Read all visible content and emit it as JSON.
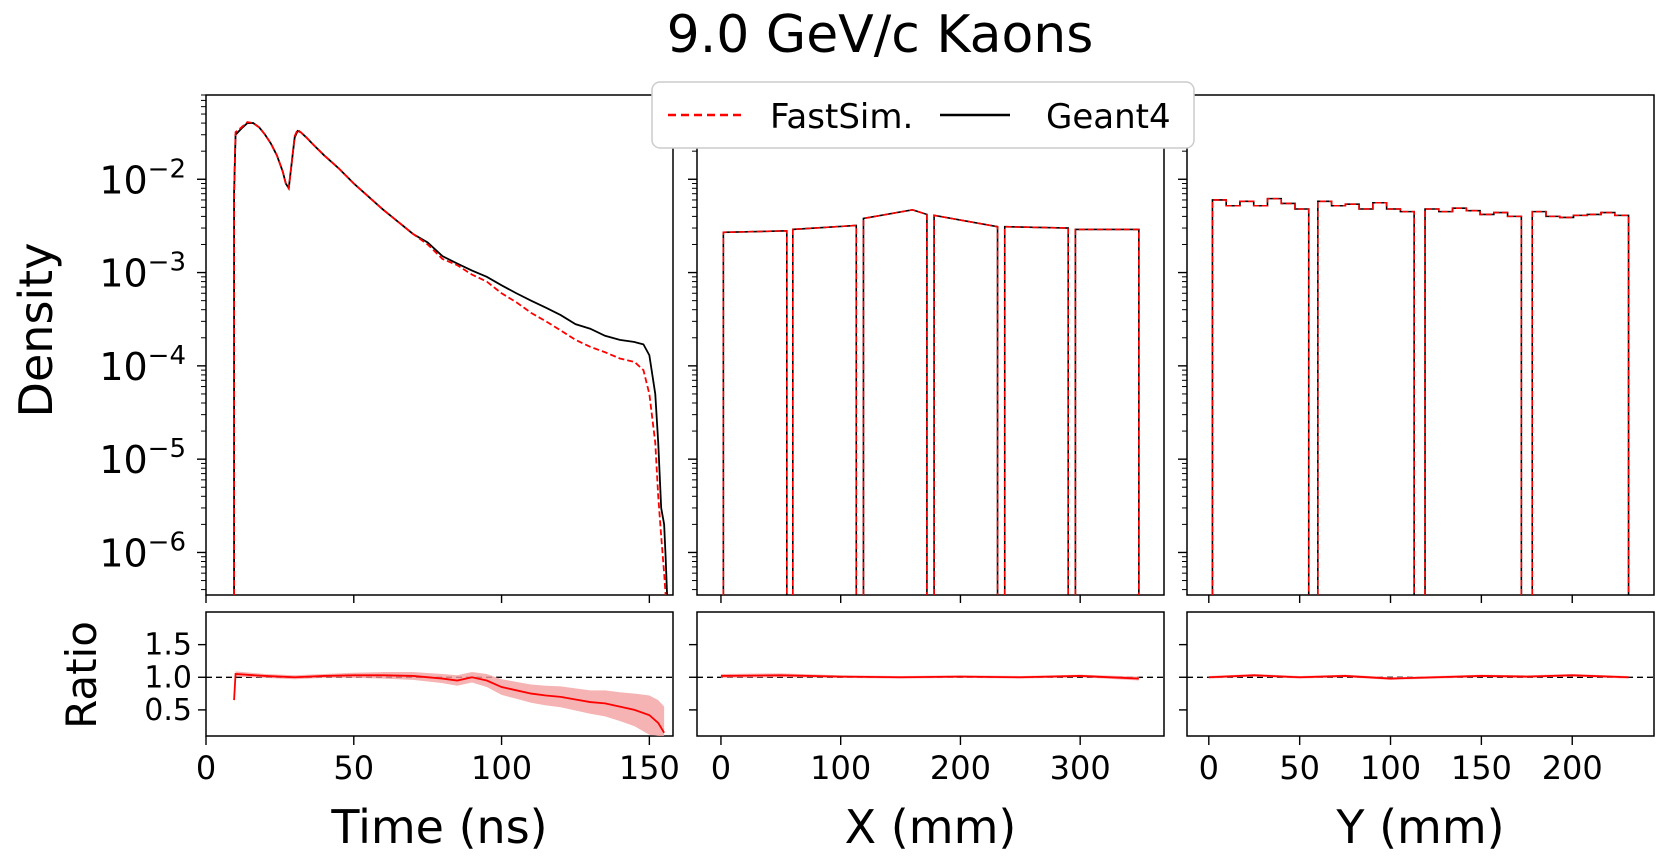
{
  "title": "9.0 GeV/c Kaons",
  "ylabel": "Density",
  "ratio_label": "Ratio",
  "legend": {
    "location": "top-center",
    "entries": [
      {
        "label": "FastSim.",
        "color": "#ff0000",
        "style": "dashed"
      },
      {
        "label": "Geant4",
        "color": "#000000",
        "style": "solid"
      }
    ]
  },
  "colors": {
    "fastsim": "#ff0000",
    "geant4": "#000000",
    "ratio_band": "#f4a0a0"
  },
  "chart_data": [
    {
      "type": "line",
      "id": "time",
      "xlabel": "Time (ns)",
      "ylabel": "Density",
      "yscale": "log",
      "xlim": [
        0,
        158
      ],
      "ylim": [
        3.5e-07,
        0.08
      ],
      "xticks": [
        0,
        50,
        100,
        150
      ],
      "xtick_labels": [
        "0",
        "50",
        "100",
        "150"
      ],
      "yticks": [
        1e-06,
        1e-05,
        0.0001,
        0.001,
        0.01
      ],
      "ytick_labels": [
        [
          "10",
          "−6"
        ],
        [
          "10",
          "−5"
        ],
        [
          "10",
          "−4"
        ],
        [
          "10",
          "−3"
        ],
        [
          "10",
          "−2"
        ]
      ],
      "series": [
        {
          "name": "Geant4",
          "x": [
            9.5,
            10,
            12,
            14,
            16,
            18,
            20,
            22,
            24,
            26,
            27,
            28,
            29,
            30,
            31,
            32,
            34,
            36,
            40,
            45,
            50,
            55,
            60,
            65,
            70,
            75,
            80,
            85,
            90,
            95,
            100,
            105,
            110,
            115,
            120,
            125,
            130,
            135,
            140,
            145,
            148,
            150,
            152,
            153,
            154,
            155,
            155.5,
            156
          ],
          "y": [
            0.007,
            0.03,
            0.035,
            0.04,
            0.04,
            0.036,
            0.03,
            0.024,
            0.018,
            0.012,
            0.009,
            0.008,
            0.015,
            0.028,
            0.033,
            0.032,
            0.028,
            0.024,
            0.018,
            0.013,
            0.009,
            0.0065,
            0.0047,
            0.0035,
            0.0026,
            0.0021,
            0.0015,
            0.00125,
            0.00105,
            0.0009,
            0.00073,
            0.0006,
            0.0005,
            0.00042,
            0.00035,
            0.00028,
            0.00025,
            0.00021,
            0.00019,
            0.00018,
            0.00017,
            0.00013,
            5e-05,
            1.5e-05,
            3e-06,
            2e-06,
            9e-07,
            3.5e-07
          ]
        },
        {
          "name": "FastSim.",
          "x": [
            9.5,
            10,
            12,
            14,
            16,
            18,
            20,
            22,
            24,
            26,
            27,
            28,
            29,
            30,
            31,
            32,
            34,
            36,
            40,
            45,
            50,
            55,
            60,
            65,
            70,
            75,
            80,
            85,
            90,
            95,
            100,
            105,
            110,
            115,
            120,
            125,
            130,
            135,
            140,
            145,
            148,
            150,
            152,
            153,
            154,
            155,
            155.5
          ],
          "y": [
            0.007,
            0.032,
            0.036,
            0.041,
            0.04,
            0.036,
            0.03,
            0.024,
            0.018,
            0.012,
            0.009,
            0.008,
            0.015,
            0.029,
            0.034,
            0.032,
            0.028,
            0.024,
            0.018,
            0.013,
            0.009,
            0.0065,
            0.0047,
            0.0035,
            0.0026,
            0.002,
            0.0014,
            0.0012,
            0.00095,
            0.0008,
            0.0006,
            0.00048,
            0.00037,
            0.0003,
            0.00024,
            0.00019,
            0.00016,
            0.00014,
            0.00012,
            0.00011,
            9e-05,
            5e-05,
            1.5e-05,
            4e-06,
            1.5e-06,
            6e-07,
            3.5e-07
          ]
        }
      ],
      "ratio": {
        "ylim": [
          0.1,
          2.0
        ],
        "yticks": [
          0.5,
          1.0,
          1.5
        ],
        "ytick_labels": [
          "0.5",
          "1.0",
          "1.5"
        ],
        "reference": 1.0,
        "x": [
          9.5,
          10,
          20,
          30,
          40,
          50,
          60,
          70,
          80,
          85,
          90,
          95,
          100,
          105,
          110,
          115,
          120,
          125,
          130,
          135,
          140,
          145,
          150,
          153,
          155
        ],
        "y": [
          0.65,
          1.05,
          1.02,
          1.0,
          1.02,
          1.03,
          1.03,
          1.02,
          0.98,
          0.95,
          1.0,
          0.95,
          0.85,
          0.8,
          0.75,
          0.72,
          0.7,
          0.66,
          0.62,
          0.6,
          0.55,
          0.5,
          0.42,
          0.3,
          0.15
        ],
        "err": [
          0.05,
          0.04,
          0.03,
          0.03,
          0.03,
          0.04,
          0.05,
          0.06,
          0.07,
          0.08,
          0.08,
          0.1,
          0.12,
          0.13,
          0.14,
          0.15,
          0.16,
          0.17,
          0.18,
          0.2,
          0.22,
          0.25,
          0.3,
          0.35,
          0.4
        ]
      }
    },
    {
      "type": "line",
      "id": "x",
      "xlabel": "X (mm)",
      "yscale": "log",
      "xlim": [
        -20,
        370
      ],
      "ylim": [
        3.5e-07,
        0.08
      ],
      "xticks": [
        0,
        100,
        200,
        300
      ],
      "xtick_labels": [
        "0",
        "100",
        "200",
        "300"
      ],
      "segments": [
        {
          "x0": 2,
          "x1": 55,
          "y0": 0.0027,
          "y1": 0.0028
        },
        {
          "x0": 60,
          "x1": 113,
          "y0": 0.0029,
          "y1": 0.0032
        },
        {
          "x0": 119,
          "x1": 172,
          "y0": 0.0038,
          "y1": 0.0042,
          "peak_x": 160,
          "peak_y": 0.0047
        },
        {
          "x0": 178,
          "x1": 231,
          "y0": 0.0041,
          "y1": 0.0031
        },
        {
          "x0": 237,
          "x1": 290,
          "y0": 0.0031,
          "y1": 0.003
        },
        {
          "x0": 296,
          "x1": 349,
          "y0": 0.0029,
          "y1": 0.0029
        }
      ],
      "ratio": {
        "ylim": [
          0.1,
          2.0
        ],
        "yticks": [
          0.5,
          1.0,
          1.5
        ],
        "ytick_labels": [
          "0.5",
          "1.0",
          "1.5"
        ],
        "reference": 1.0,
        "x": [
          0,
          50,
          100,
          150,
          200,
          250,
          300,
          349
        ],
        "y": [
          1.02,
          1.03,
          1.01,
          1.0,
          1.01,
          1.0,
          1.02,
          0.98
        ],
        "err": [
          0.03,
          0.03,
          0.02,
          0.02,
          0.02,
          0.02,
          0.02,
          0.03
        ]
      }
    },
    {
      "type": "line",
      "id": "y",
      "xlabel": "Y (mm)",
      "yscale": "log",
      "xlim": [
        -12,
        245
      ],
      "ylim": [
        3.5e-07,
        0.08
      ],
      "xticks": [
        0,
        50,
        100,
        150,
        200
      ],
      "xtick_labels": [
        "0",
        "50",
        "100",
        "150",
        "200"
      ],
      "segments": [
        {
          "x0": 2,
          "x1": 55,
          "y0": 0.0055,
          "y1": 0.0048,
          "wiggle": [
            0.006,
            0.0052,
            0.0058,
            0.0052,
            0.0062,
            0.0055,
            0.0048
          ]
        },
        {
          "x0": 60,
          "x1": 113,
          "y0": 0.0055,
          "y1": 0.0045,
          "wiggle": [
            0.0058,
            0.0052,
            0.0054,
            0.0048,
            0.0056,
            0.0048,
            0.0045
          ]
        },
        {
          "x0": 119,
          "x1": 172,
          "y0": 0.0047,
          "y1": 0.004,
          "wiggle": [
            0.0048,
            0.0045,
            0.0049,
            0.0046,
            0.0042,
            0.0044,
            0.004
          ]
        },
        {
          "x0": 178,
          "x1": 231,
          "y0": 0.0042,
          "y1": 0.0041,
          "wiggle": [
            0.0045,
            0.004,
            0.0039,
            0.0041,
            0.0042,
            0.0044,
            0.0041
          ]
        }
      ],
      "ratio": {
        "ylim": [
          0.1,
          2.0
        ],
        "yticks": [
          0.5,
          1.0,
          1.5
        ],
        "ytick_labels": [
          "0.5",
          "1.0",
          "1.5"
        ],
        "reference": 1.0,
        "x": [
          0,
          25,
          50,
          75,
          100,
          125,
          150,
          175,
          200,
          231
        ],
        "y": [
          1.0,
          1.03,
          1.0,
          1.02,
          0.98,
          1.0,
          1.02,
          1.01,
          1.03,
          1.0
        ],
        "err": [
          0.02,
          0.02,
          0.02,
          0.02,
          0.02,
          0.02,
          0.02,
          0.02,
          0.02,
          0.02
        ]
      }
    }
  ]
}
